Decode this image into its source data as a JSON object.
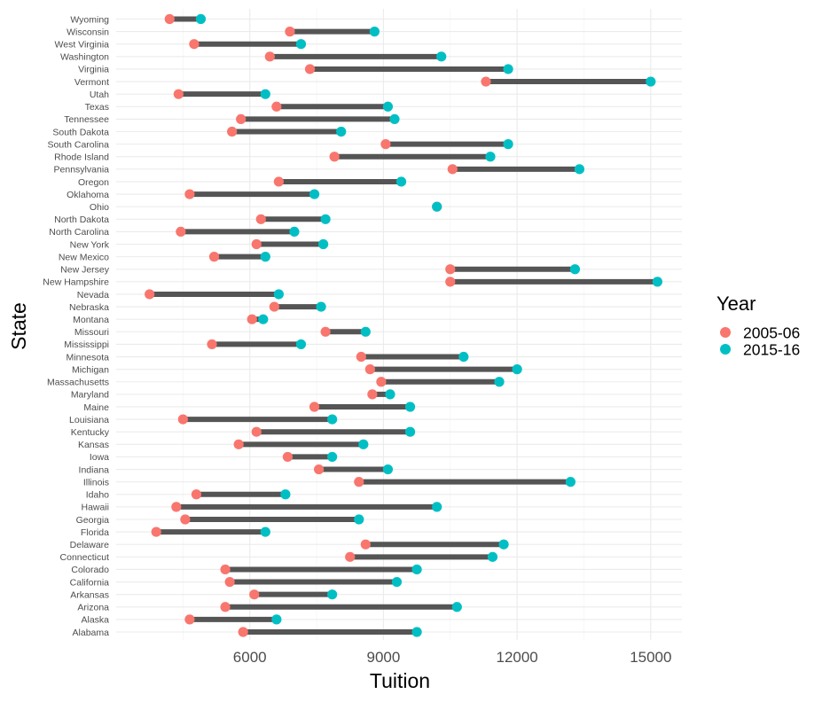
{
  "chart_data": {
    "type": "dumbbell",
    "title": "",
    "xlabel": "Tuition",
    "ylabel": "State",
    "xlim": [
      3000,
      15700
    ],
    "xticks": [
      6000,
      9000,
      12000,
      15000
    ],
    "xtick_labels": [
      "6000",
      "9000",
      "12000",
      "15000"
    ],
    "grid": true,
    "legend": {
      "title": "Year",
      "placement": "right",
      "entries": [
        {
          "label": "2005-06",
          "color": "#f8766d"
        },
        {
          "label": "2015-16",
          "color": "#00bfc4"
        }
      ]
    },
    "series": [
      {
        "name": "2005-06",
        "color": "#f8766d"
      },
      {
        "name": "2015-16",
        "color": "#00bfc4"
      }
    ],
    "categories": [
      "Alabama",
      "Alaska",
      "Arizona",
      "Arkansas",
      "California",
      "Colorado",
      "Connecticut",
      "Delaware",
      "Florida",
      "Georgia",
      "Hawaii",
      "Idaho",
      "Illinois",
      "Indiana",
      "Iowa",
      "Kansas",
      "Kentucky",
      "Louisiana",
      "Maine",
      "Maryland",
      "Massachusetts",
      "Michigan",
      "Minnesota",
      "Mississippi",
      "Missouri",
      "Montana",
      "Nebraska",
      "Nevada",
      "New Hampshire",
      "New Jersey",
      "New Mexico",
      "New York",
      "North Carolina",
      "North Dakota",
      "Ohio",
      "Oklahoma",
      "Oregon",
      "Pennsylvania",
      "Rhode Island",
      "South Carolina",
      "South Dakota",
      "Tennessee",
      "Texas",
      "Utah",
      "Vermont",
      "Virginia",
      "Washington",
      "West Virginia",
      "Wisconsin",
      "Wyoming"
    ],
    "values_2005": [
      5850,
      4650,
      5450,
      6100,
      5550,
      5450,
      8250,
      8600,
      3900,
      4550,
      4350,
      4800,
      8450,
      7550,
      6850,
      5750,
      6150,
      4500,
      7450,
      8750,
      8950,
      8700,
      8500,
      5150,
      7700,
      6050,
      6550,
      3750,
      10500,
      10500,
      5200,
      6150,
      4450,
      6250,
      10200,
      4650,
      6650,
      10550,
      7900,
      9050,
      5600,
      5800,
      6600,
      4400,
      11300,
      7350,
      6450,
      4750,
      6900,
      4200
    ],
    "values_2015": [
      9750,
      6600,
      10650,
      7850,
      9300,
      9750,
      11450,
      11700,
      6350,
      8450,
      10200,
      6800,
      13200,
      9100,
      7850,
      8550,
      9600,
      7850,
      9600,
      9150,
      11600,
      12000,
      10800,
      7150,
      8600,
      6300,
      7600,
      6650,
      15150,
      13300,
      6350,
      7650,
      7000,
      7700,
      10200,
      7450,
      9400,
      13400,
      11400,
      11800,
      8050,
      9250,
      9100,
      6350,
      15000,
      11800,
      10300,
      7150,
      8800,
      4900
    ]
  }
}
